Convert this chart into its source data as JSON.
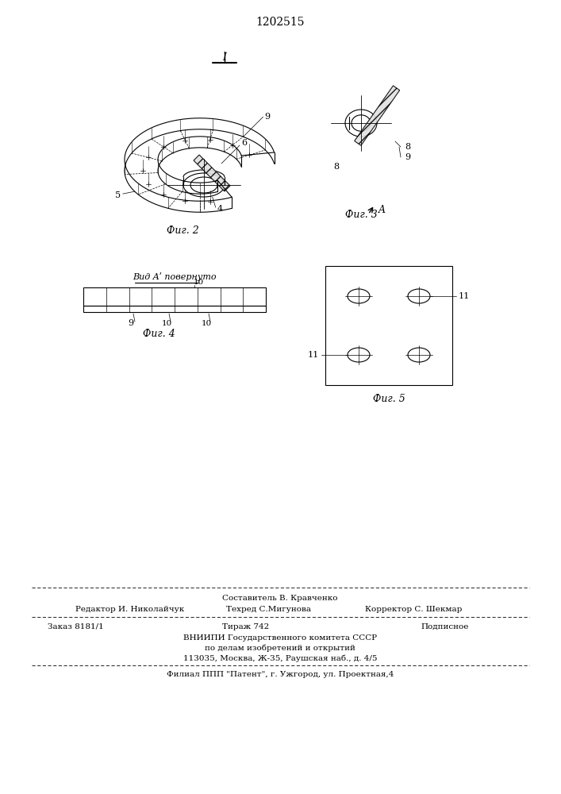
{
  "patent_number": "1202515",
  "bg": "#ffffff",
  "lc": "#000000",
  "fig2_caption": "Фиг. 2",
  "fig3_caption": "Фиг. 3",
  "fig4_caption": "Фиг. 4",
  "fig5_caption": "Фиг. 5",
  "view_label": "Вид Aʹ повернуто",
  "section_I": "I",
  "footer_composer": "Составитель В. Кравченко",
  "footer_editor": "Редактор И. Николайчук",
  "footer_techred": "Техред С.Мигунова",
  "footer_corrector": "Корректор С. Шекмар",
  "footer_order": "Заказ 8181/1",
  "footer_tiraz": "Тираж 742",
  "footer_podp": "Подписное",
  "footer_vniipи": "ВНИИПИ Государственного комитета СССР",
  "footer_po": "по делам изобретений и открытий",
  "footer_addr": "113035, Москва, Ж-35, Раушская наб., д. 4/5",
  "footer_filial": "Филиал ППП \"Патент\", г. Ужгород, ул. Проектная,4"
}
